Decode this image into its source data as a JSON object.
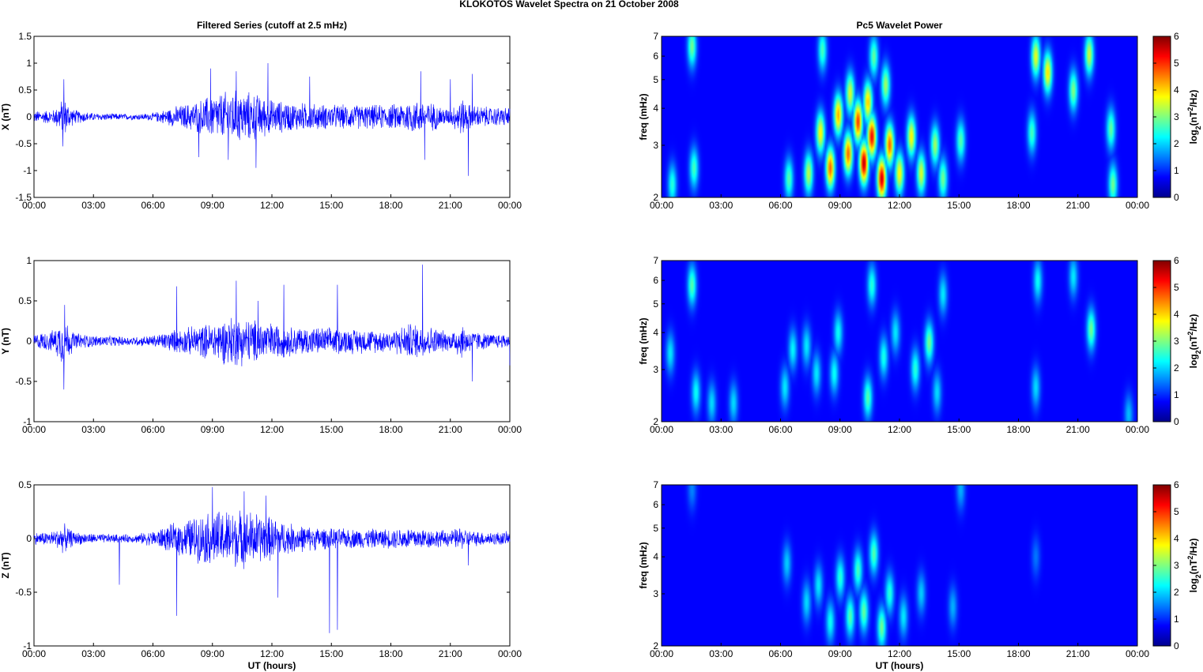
{
  "figure": {
    "title": "KLOKOTOS Wavelet Spectra on 21 October   2008",
    "left_column_title": "Filtered Series (cutoff at 2.5 mHz)",
    "right_column_title": "Pc5 Wavelet Power",
    "xlabel": "UT (hours)",
    "colors": {
      "trace": "#0000ff",
      "spectrogram_bg": "#00008f",
      "axes": "#000000"
    }
  },
  "chart_data": [
    {
      "type": "line",
      "component": "X",
      "ylabel": "X (nT)",
      "ylim": [
        -1.5,
        1.5
      ],
      "yticks": [
        -1.5,
        -1,
        -0.5,
        0,
        0.5,
        1,
        1.5
      ],
      "ytick_labels": [
        "-1.5",
        "-1",
        "-0.5",
        "0",
        "0.5",
        "1",
        "1.5"
      ],
      "xlim": [
        0,
        24
      ],
      "xticks": [
        0,
        3,
        6,
        9,
        12,
        15,
        18,
        21,
        24
      ],
      "xtick_labels": [
        "00:00",
        "03:00",
        "06:00",
        "09:00",
        "12:00",
        "15:00",
        "18:00",
        "21:00",
        "00:00"
      ],
      "envelope_hours": [
        0,
        1,
        1.5,
        2,
        3,
        5,
        6,
        7,
        8,
        9,
        10,
        11,
        12,
        13,
        15,
        18,
        19,
        20,
        21,
        21.5,
        22,
        23,
        24
      ],
      "envelope_amplitude_nT": [
        0.12,
        0.15,
        0.4,
        0.15,
        0.08,
        0.06,
        0.08,
        0.2,
        0.3,
        0.45,
        0.55,
        0.5,
        0.35,
        0.3,
        0.25,
        0.25,
        0.35,
        0.3,
        0.15,
        0.4,
        0.25,
        0.2,
        0.2
      ],
      "spikes": [
        {
          "x": 1.5,
          "y": 0.7
        },
        {
          "x": 1.45,
          "y": -0.55
        },
        {
          "x": 8.3,
          "y": -0.75
        },
        {
          "x": 8.9,
          "y": 0.9
        },
        {
          "x": 10.2,
          "y": 0.85
        },
        {
          "x": 11.8,
          "y": 1.0
        },
        {
          "x": 11.2,
          "y": -0.95
        },
        {
          "x": 9.8,
          "y": -0.8
        },
        {
          "x": 13.9,
          "y": 0.75
        },
        {
          "x": 19.5,
          "y": 0.85
        },
        {
          "x": 21.9,
          "y": -1.1
        },
        {
          "x": 22.1,
          "y": 0.8
        },
        {
          "x": 19.7,
          "y": -0.8
        },
        {
          "x": 21.0,
          "y": 0.7
        }
      ]
    },
    {
      "type": "line",
      "component": "Y",
      "ylabel": "Y (nT)",
      "ylim": [
        -1,
        1
      ],
      "yticks": [
        -1,
        -0.5,
        0,
        0.5,
        1
      ],
      "ytick_labels": [
        "-1",
        "-0.5",
        "0",
        "0.5",
        "1"
      ],
      "xlim": [
        0,
        24
      ],
      "xticks": [
        0,
        3,
        6,
        9,
        12,
        15,
        18,
        21,
        24
      ],
      "xtick_labels": [
        "00:00",
        "03:00",
        "06:00",
        "09:00",
        "12:00",
        "15:00",
        "18:00",
        "21:00",
        "00:00"
      ],
      "envelope_hours": [
        0,
        1,
        1.5,
        2,
        3,
        5,
        6,
        7,
        8,
        9,
        10,
        11,
        12,
        13,
        15,
        18,
        19,
        20,
        21,
        21.5,
        22,
        23,
        24
      ],
      "envelope_amplitude_nT": [
        0.1,
        0.15,
        0.35,
        0.12,
        0.08,
        0.06,
        0.08,
        0.15,
        0.2,
        0.25,
        0.35,
        0.3,
        0.25,
        0.2,
        0.18,
        0.15,
        0.25,
        0.2,
        0.12,
        0.25,
        0.15,
        0.1,
        0.1
      ],
      "spikes": [
        {
          "x": 1.5,
          "y": -0.6
        },
        {
          "x": 1.55,
          "y": 0.45
        },
        {
          "x": 7.2,
          "y": 0.68
        },
        {
          "x": 10.2,
          "y": 0.75
        },
        {
          "x": 11.3,
          "y": 0.5
        },
        {
          "x": 12.6,
          "y": 0.7
        },
        {
          "x": 15.3,
          "y": 0.7
        },
        {
          "x": 19.6,
          "y": 0.95
        },
        {
          "x": 22.1,
          "y": -0.5
        },
        {
          "x": 24.0,
          "y": -0.3
        }
      ]
    },
    {
      "type": "line",
      "component": "Z",
      "ylabel": "Z (nT)",
      "ylim": [
        -1,
        0.5
      ],
      "yticks": [
        -1,
        -0.5,
        0,
        0.5
      ],
      "ytick_labels": [
        "-1",
        "-0.5",
        "0",
        "0.5"
      ],
      "xlim": [
        0,
        24
      ],
      "xticks": [
        0,
        3,
        6,
        9,
        12,
        15,
        18,
        21,
        24
      ],
      "xtick_labels": [
        "00:00",
        "03:00",
        "06:00",
        "09:00",
        "12:00",
        "15:00",
        "18:00",
        "21:00",
        "00:00"
      ],
      "envelope_hours": [
        0,
        1,
        1.5,
        2,
        3,
        5,
        6,
        7,
        8,
        9,
        10,
        11,
        12,
        13,
        15,
        18,
        19,
        20,
        21,
        21.5,
        22,
        23,
        24
      ],
      "envelope_amplitude_nT": [
        0.06,
        0.08,
        0.15,
        0.07,
        0.05,
        0.04,
        0.08,
        0.15,
        0.22,
        0.28,
        0.3,
        0.28,
        0.22,
        0.15,
        0.1,
        0.1,
        0.12,
        0.1,
        0.08,
        0.12,
        0.08,
        0.07,
        0.07
      ],
      "spikes": [
        {
          "x": 7.2,
          "y": -0.72
        },
        {
          "x": 9.0,
          "y": 0.48
        },
        {
          "x": 10.6,
          "y": 0.44
        },
        {
          "x": 12.3,
          "y": -0.55
        },
        {
          "x": 14.9,
          "y": -0.88
        },
        {
          "x": 15.3,
          "y": -0.85
        },
        {
          "x": 11.7,
          "y": 0.4
        },
        {
          "x": 4.3,
          "y": -0.43
        },
        {
          "x": 21.9,
          "y": -0.25
        }
      ]
    },
    {
      "type": "heatmap",
      "component": "X",
      "ylabel": "freq (mHz)",
      "y_scale": "log",
      "ylim": [
        2,
        7
      ],
      "yticks": [
        2,
        3,
        4,
        5,
        6,
        7
      ],
      "xlim": [
        0,
        24
      ],
      "xticks": [
        0,
        3,
        6,
        9,
        12,
        15,
        18,
        21,
        24
      ],
      "xtick_labels": [
        "00:00",
        "03:00",
        "06:00",
        "09:00",
        "12:00",
        "15:00",
        "18:00",
        "21:00",
        "00:00"
      ],
      "colorbar": {
        "label": "log",
        "label_sub": "2",
        "label_rest": "(nT",
        "label_sup": "2",
        "label_end": "/Hz)",
        "range": [
          0,
          6
        ],
        "ticks": [
          0,
          1,
          2,
          3,
          4,
          5,
          6
        ]
      },
      "blobs": [
        {
          "t": 1.5,
          "f": 6.5,
          "p": 2.5
        },
        {
          "t": 1.6,
          "f": 2.5,
          "p": 2.2
        },
        {
          "t": 0.5,
          "f": 2.2,
          "p": 2.0
        },
        {
          "t": 6.4,
          "f": 2.3,
          "p": 2.3
        },
        {
          "t": 7.4,
          "f": 2.4,
          "p": 3.0
        },
        {
          "t": 8.0,
          "f": 3.3,
          "p": 3.5
        },
        {
          "t": 8.5,
          "f": 2.5,
          "p": 4.5
        },
        {
          "t": 8.9,
          "f": 3.8,
          "p": 4.0
        },
        {
          "t": 9.4,
          "f": 2.8,
          "p": 4.5
        },
        {
          "t": 9.9,
          "f": 3.6,
          "p": 4.8
        },
        {
          "t": 10.2,
          "f": 2.6,
          "p": 5.6
        },
        {
          "t": 10.6,
          "f": 3.2,
          "p": 5.2
        },
        {
          "t": 11.1,
          "f": 2.3,
          "p": 5.5
        },
        {
          "t": 11.5,
          "f": 3.0,
          "p": 4.5
        },
        {
          "t": 12.0,
          "f": 2.4,
          "p": 3.5
        },
        {
          "t": 12.6,
          "f": 3.2,
          "p": 3.5
        },
        {
          "t": 13.1,
          "f": 2.4,
          "p": 3.2
        },
        {
          "t": 13.8,
          "f": 3.0,
          "p": 2.8
        },
        {
          "t": 9.5,
          "f": 4.5,
          "p": 3.2
        },
        {
          "t": 10.4,
          "f": 4.2,
          "p": 3.8
        },
        {
          "t": 11.3,
          "f": 4.8,
          "p": 2.8
        },
        {
          "t": 14.2,
          "f": 2.3,
          "p": 2.5
        },
        {
          "t": 15.1,
          "f": 3.1,
          "p": 2.3
        },
        {
          "t": 18.7,
          "f": 3.3,
          "p": 2.2
        },
        {
          "t": 18.9,
          "f": 6.0,
          "p": 3.3
        },
        {
          "t": 19.5,
          "f": 5.3,
          "p": 3.6
        },
        {
          "t": 21.6,
          "f": 6.1,
          "p": 3.1
        },
        {
          "t": 20.8,
          "f": 4.6,
          "p": 2.6
        },
        {
          "t": 22.7,
          "f": 3.4,
          "p": 2.4
        },
        {
          "t": 22.8,
          "f": 2.2,
          "p": 2.5
        },
        {
          "t": 8.1,
          "f": 6.3,
          "p": 2.2
        },
        {
          "t": 10.7,
          "f": 6.0,
          "p": 2.4
        }
      ]
    },
    {
      "type": "heatmap",
      "component": "Y",
      "ylabel": "freq (mHz)",
      "y_scale": "log",
      "ylim": [
        2,
        7
      ],
      "yticks": [
        2,
        3,
        4,
        5,
        6,
        7
      ],
      "xlim": [
        0,
        24
      ],
      "xticks": [
        0,
        3,
        6,
        9,
        12,
        15,
        18,
        21,
        24
      ],
      "xtick_labels": [
        "00:00",
        "03:00",
        "06:00",
        "09:00",
        "12:00",
        "15:00",
        "18:00",
        "21:00",
        "00:00"
      ],
      "colorbar": {
        "label": "log",
        "label_sub": "2",
        "label_rest": "(nT",
        "label_sup": "2",
        "label_end": "/Hz)",
        "range": [
          0,
          6
        ],
        "ticks": [
          0,
          1,
          2,
          3,
          4,
          5,
          6
        ]
      },
      "blobs": [
        {
          "t": 1.5,
          "f": 5.8,
          "p": 2.3
        },
        {
          "t": 1.7,
          "f": 2.5,
          "p": 1.8
        },
        {
          "t": 0.4,
          "f": 3.4,
          "p": 1.6
        },
        {
          "t": 2.5,
          "f": 2.3,
          "p": 1.5
        },
        {
          "t": 3.6,
          "f": 2.3,
          "p": 1.5
        },
        {
          "t": 6.2,
          "f": 2.6,
          "p": 1.6
        },
        {
          "t": 6.6,
          "f": 3.5,
          "p": 1.7
        },
        {
          "t": 7.3,
          "f": 3.6,
          "p": 1.6
        },
        {
          "t": 7.8,
          "f": 2.9,
          "p": 1.6
        },
        {
          "t": 8.7,
          "f": 2.9,
          "p": 1.8
        },
        {
          "t": 8.9,
          "f": 4.0,
          "p": 1.8
        },
        {
          "t": 10.4,
          "f": 2.4,
          "p": 2.3
        },
        {
          "t": 10.6,
          "f": 5.8,
          "p": 2.0
        },
        {
          "t": 11.2,
          "f": 3.3,
          "p": 1.9
        },
        {
          "t": 11.8,
          "f": 4.0,
          "p": 1.6
        },
        {
          "t": 12.8,
          "f": 3.0,
          "p": 2.0
        },
        {
          "t": 13.5,
          "f": 3.7,
          "p": 2.5
        },
        {
          "t": 13.9,
          "f": 2.5,
          "p": 1.5
        },
        {
          "t": 14.2,
          "f": 5.4,
          "p": 1.6
        },
        {
          "t": 18.9,
          "f": 2.6,
          "p": 1.5
        },
        {
          "t": 19.0,
          "f": 6.0,
          "p": 1.8
        },
        {
          "t": 21.7,
          "f": 4.1,
          "p": 2.5
        },
        {
          "t": 20.8,
          "f": 6.2,
          "p": 1.6
        },
        {
          "t": 23.6,
          "f": 2.1,
          "p": 1.3
        }
      ]
    },
    {
      "type": "heatmap",
      "component": "Z",
      "ylabel": "freq (mHz)",
      "y_scale": "log",
      "ylim": [
        2,
        7
      ],
      "yticks": [
        2,
        3,
        4,
        5,
        6,
        7
      ],
      "xlim": [
        0,
        24
      ],
      "xticks": [
        0,
        3,
        6,
        9,
        12,
        15,
        18,
        21,
        24
      ],
      "xtick_labels": [
        "00:00",
        "03:00",
        "06:00",
        "09:00",
        "12:00",
        "15:00",
        "18:00",
        "21:00",
        "00:00"
      ],
      "colorbar": {
        "label": "log",
        "label_sub": "2",
        "label_rest": "(nT",
        "label_sup": "2",
        "label_end": "/Hz)",
        "range": [
          0,
          6
        ],
        "ticks": [
          0,
          1,
          2,
          3,
          4,
          5,
          6
        ]
      },
      "blobs": [
        {
          "t": 6.3,
          "f": 3.8,
          "p": 1.4
        },
        {
          "t": 7.3,
          "f": 2.8,
          "p": 1.5
        },
        {
          "t": 7.9,
          "f": 3.2,
          "p": 1.6
        },
        {
          "t": 8.5,
          "f": 2.4,
          "p": 1.8
        },
        {
          "t": 9.0,
          "f": 3.4,
          "p": 2.0
        },
        {
          "t": 9.5,
          "f": 2.5,
          "p": 2.3
        },
        {
          "t": 9.9,
          "f": 3.6,
          "p": 2.2
        },
        {
          "t": 10.2,
          "f": 2.6,
          "p": 2.4
        },
        {
          "t": 10.7,
          "f": 4.1,
          "p": 2.3
        },
        {
          "t": 11.1,
          "f": 2.3,
          "p": 2.5
        },
        {
          "t": 11.5,
          "f": 3.0,
          "p": 2.0
        },
        {
          "t": 12.2,
          "f": 2.5,
          "p": 1.6
        },
        {
          "t": 13.1,
          "f": 3.0,
          "p": 1.4
        },
        {
          "t": 14.7,
          "f": 2.7,
          "p": 1.2
        },
        {
          "t": 15.1,
          "f": 6.8,
          "p": 1.2
        },
        {
          "t": 1.5,
          "f": 6.8,
          "p": 0.9
        },
        {
          "t": 18.9,
          "f": 4.0,
          "p": 0.8
        }
      ]
    }
  ]
}
